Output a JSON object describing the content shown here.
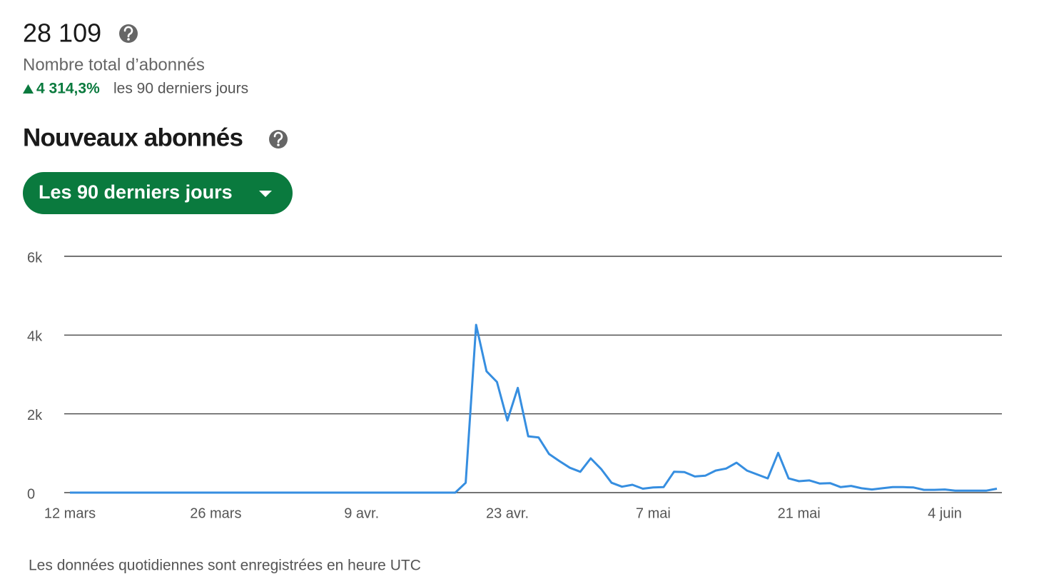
{
  "summary": {
    "total": "28 109",
    "total_label": "Nombre total d’abonnés",
    "growth": "4 314,3%",
    "growth_period": "les 90 derniers jours"
  },
  "section": {
    "title": "Nouveaux abonnés",
    "period_button": "Les 90 derniers jours"
  },
  "chart_data": {
    "type": "line",
    "color": "#368ee0",
    "categories": [
      "12 mars",
      null,
      null,
      null,
      null,
      null,
      null,
      null,
      null,
      null,
      null,
      null,
      null,
      null,
      "26 mars",
      null,
      null,
      null,
      null,
      null,
      null,
      null,
      null,
      null,
      null,
      null,
      null,
      null,
      "9 avr.",
      null,
      null,
      null,
      null,
      null,
      null,
      null,
      null,
      null,
      null,
      null,
      null,
      null,
      "23 avr.",
      null,
      null,
      null,
      null,
      null,
      null,
      null,
      null,
      null,
      null,
      null,
      null,
      null,
      "7 mai",
      null,
      null,
      null,
      null,
      null,
      null,
      null,
      null,
      null,
      null,
      null,
      null,
      null,
      "21 mai",
      null,
      null,
      null,
      null,
      null,
      null,
      null,
      null,
      null,
      null,
      null,
      null,
      null,
      "4 juin",
      null,
      null,
      null,
      null,
      null
    ],
    "values": [
      0,
      0,
      0,
      0,
      0,
      0,
      0,
      0,
      0,
      0,
      0,
      0,
      0,
      0,
      0,
      0,
      0,
      0,
      0,
      0,
      0,
      0,
      0,
      0,
      0,
      0,
      0,
      0,
      0,
      0,
      0,
      0,
      0,
      0,
      0,
      0,
      0,
      0,
      250,
      4260,
      3080,
      2810,
      1830,
      2660,
      1430,
      1400,
      980,
      800,
      630,
      530,
      870,
      600,
      250,
      150,
      200,
      100,
      130,
      140,
      530,
      520,
      410,
      430,
      560,
      610,
      760,
      560,
      460,
      360,
      1010,
      360,
      290,
      310,
      230,
      240,
      140,
      170,
      110,
      80,
      110,
      140,
      140,
      130,
      70,
      70,
      80,
      50,
      50,
      50,
      50,
      100
    ],
    "ylim": [
      0,
      6000
    ],
    "yticks": [
      0,
      {
        "value": 2000,
        "label": "2k"
      },
      {
        "value": 4000,
        "label": "4k"
      },
      {
        "value": 6000,
        "label": "6k"
      }
    ],
    "grid": true
  },
  "footnote": "Les données quotidiennes sont enregistrées en heure UTC"
}
